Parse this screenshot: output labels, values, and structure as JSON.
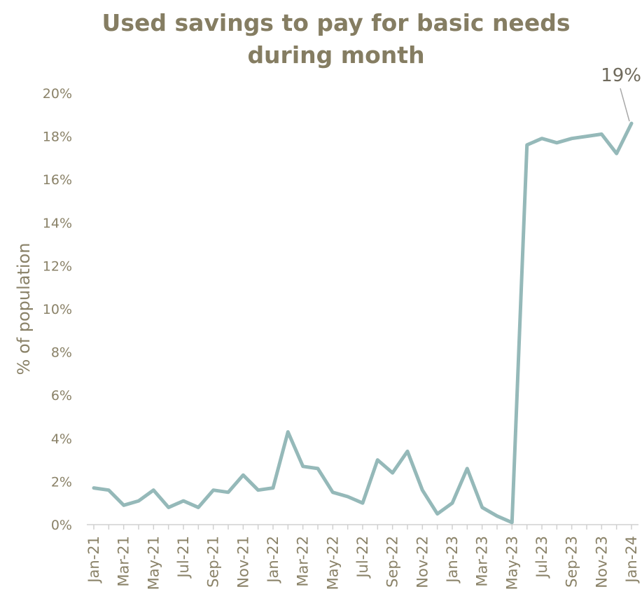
{
  "chart_data": {
    "type": "line",
    "title": "Used savings to pay for basic needs during month",
    "ylabel": "% of population",
    "xlabel": "",
    "ylim": [
      0,
      20
    ],
    "y_ticks": [
      "0%",
      "2%",
      "4%",
      "6%",
      "8%",
      "10%",
      "12%",
      "14%",
      "16%",
      "18%",
      "20%"
    ],
    "x_tick_labels": [
      "Jan-21",
      "Mar-21",
      "May-21",
      "Jul-21",
      "Sep-21",
      "Nov-21",
      "Jan-22",
      "Mar-22",
      "May-22",
      "Jul-22",
      "Sep-22",
      "Nov-22",
      "Jan-23",
      "Mar-23",
      "May-23",
      "Jul-23",
      "Sep-23",
      "Nov-23",
      "Jan-24"
    ],
    "x": [
      "Jan-21",
      "Feb-21",
      "Mar-21",
      "Apr-21",
      "May-21",
      "Jun-21",
      "Jul-21",
      "Aug-21",
      "Sep-21",
      "Oct-21",
      "Nov-21",
      "Dec-21",
      "Jan-22",
      "Feb-22",
      "Mar-22",
      "Apr-22",
      "May-22",
      "Jun-22",
      "Jul-22",
      "Aug-22",
      "Sep-22",
      "Oct-22",
      "Nov-22",
      "Dec-22",
      "Jan-23",
      "Feb-23",
      "Mar-23",
      "Apr-23",
      "May-23",
      "Jun-23",
      "Jul-23",
      "Aug-23",
      "Sep-23",
      "Oct-23",
      "Nov-23",
      "Dec-23",
      "Jan-24"
    ],
    "series": [
      {
        "values": [
          1.7,
          1.6,
          0.9,
          1.1,
          1.6,
          0.8,
          1.1,
          0.8,
          1.6,
          1.5,
          2.3,
          1.6,
          1.7,
          4.3,
          2.7,
          2.6,
          1.5,
          1.3,
          1.0,
          3.0,
          2.4,
          3.4,
          1.6,
          0.5,
          1.0,
          2.6,
          0.8,
          0.4,
          0.1,
          17.6,
          17.9,
          17.7,
          17.9,
          18.0,
          18.1,
          17.2,
          18.6
        ],
        "color": "#95b9b9"
      }
    ],
    "annotations": [
      {
        "text": "19%",
        "target_index": 36
      }
    ],
    "grid": false,
    "legend": "none"
  }
}
